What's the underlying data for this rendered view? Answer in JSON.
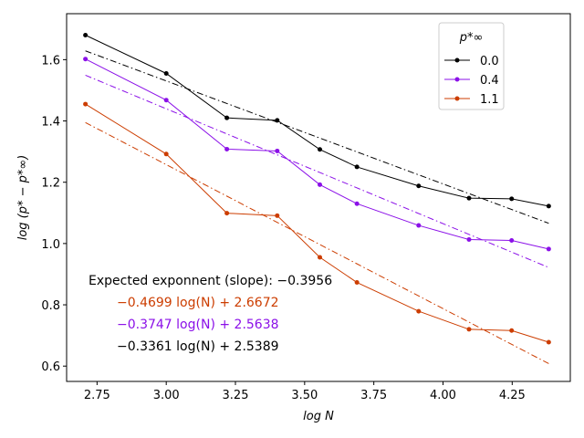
{
  "chart_data": {
    "type": "line",
    "xlabel": "log N",
    "ylabel": "log (p* − p*∞)",
    "xlim": [
      2.64,
      4.46
    ],
    "ylim": [
      0.55,
      1.75
    ],
    "xticks": [
      "2.75",
      "3.00",
      "3.25",
      "3.50",
      "3.75",
      "4.00",
      "4.25"
    ],
    "yticks": [
      "0.6",
      "0.8",
      "1.0",
      "1.2",
      "1.4",
      "1.6"
    ],
    "x": [
      2.708,
      3.0,
      3.219,
      3.401,
      3.555,
      3.689,
      3.912,
      4.094,
      4.248,
      4.382
    ],
    "series": [
      {
        "name": "0.0",
        "color": "#000000",
        "values": [
          1.68,
          1.555,
          1.41,
          1.402,
          1.307,
          1.25,
          1.188,
          1.148,
          1.146,
          1.122
        ],
        "fit": {
          "slope": -0.3361,
          "intercept": 2.5389
        }
      },
      {
        "name": "0.4",
        "color": "#8b10e8",
        "values": [
          1.602,
          1.468,
          1.308,
          1.302,
          1.192,
          1.13,
          1.059,
          1.013,
          1.01,
          0.982
        ],
        "fit": {
          "slope": -0.3747,
          "intercept": 2.5638
        }
      },
      {
        "name": "1.1",
        "color": "#cc3d00",
        "values": [
          1.455,
          1.292,
          1.099,
          1.091,
          0.955,
          0.873,
          0.779,
          0.72,
          0.716,
          0.678
        ],
        "fit": {
          "slope": -0.4699,
          "intercept": 2.6672
        }
      }
    ],
    "legend": {
      "title": "p*∞",
      "placement": "top-right",
      "entries": [
        "0.0",
        "0.4",
        "1.1"
      ]
    },
    "annotations": {
      "expected": "Expected exponnent (slope): −0.3956",
      "fit_lines": [
        {
          "text": "−0.4699 log(N) + 2.6672",
          "color": "#cc3d00"
        },
        {
          "text": "−0.3747 log(N) + 2.5638",
          "color": "#8b10e8"
        },
        {
          "text": "−0.3361 log(N) + 2.5389",
          "color": "#000000"
        }
      ]
    },
    "grid": false
  }
}
